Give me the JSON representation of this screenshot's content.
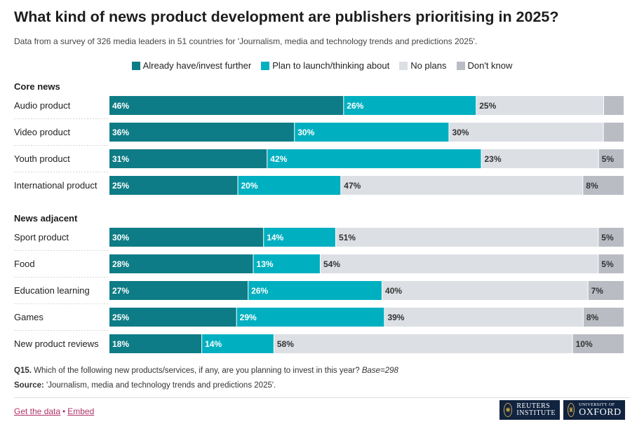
{
  "title": "What kind of news product development are publishers prioritising in 2025?",
  "subtitle": "Data from a survey of 326 media leaders in 51 countries for 'Journalism, media and technology trends and predictions 2025'.",
  "legend": [
    {
      "label": "Already have/invest further",
      "color": "#0e7c86"
    },
    {
      "label": "Plan to launch/thinking about",
      "color": "#00b0c0"
    },
    {
      "label": "No plans",
      "color": "#dcdfe4"
    },
    {
      "label": "Don't know",
      "color": "#b9bcc3"
    }
  ],
  "chart_data": {
    "type": "bar",
    "orientation": "horizontal",
    "stacked": true,
    "series_names": [
      "Already have/invest further",
      "Plan to launch/thinking about",
      "No plans",
      "Don't know"
    ],
    "groups": [
      {
        "name": "Core news",
        "rows": [
          {
            "label": "Audio product",
            "values": [
              46,
              26,
              25,
              4
            ],
            "labels": [
              "46%",
              "26%",
              "25%",
              ""
            ]
          },
          {
            "label": "Video product",
            "values": [
              36,
              30,
              30,
              4
            ],
            "labels": [
              "36%",
              "30%",
              "30%",
              ""
            ]
          },
          {
            "label": "Youth product",
            "values": [
              31,
              42,
              23,
              5
            ],
            "labels": [
              "31%",
              "42%",
              "23%",
              "5%"
            ]
          },
          {
            "label": "International product",
            "values": [
              25,
              20,
              47,
              8
            ],
            "labels": [
              "25%",
              "20%",
              "47%",
              "8%"
            ]
          }
        ]
      },
      {
        "name": "News adjacent",
        "rows": [
          {
            "label": "Sport product",
            "values": [
              30,
              14,
              51,
              5
            ],
            "labels": [
              "30%",
              "14%",
              "51%",
              "5%"
            ]
          },
          {
            "label": "Food",
            "values": [
              28,
              13,
              54,
              5
            ],
            "labels": [
              "28%",
              "13%",
              "54%",
              "5%"
            ]
          },
          {
            "label": "Education learning",
            "values": [
              27,
              26,
              40,
              7
            ],
            "labels": [
              "27%",
              "26%",
              "40%",
              "7%"
            ]
          },
          {
            "label": "Games",
            "values": [
              25,
              29,
              39,
              8
            ],
            "labels": [
              "25%",
              "29%",
              "39%",
              "8%"
            ]
          },
          {
            "label": "New product reviews",
            "values": [
              18,
              14,
              58,
              10
            ],
            "labels": [
              "18%",
              "14%",
              "58%",
              "10%"
            ]
          }
        ]
      }
    ],
    "colors": [
      "#0e7c86",
      "#00b0c0",
      "#dcdfe4",
      "#b9bcc3"
    ],
    "label_colors": [
      "#ffffff",
      "#ffffff",
      "#333333",
      "#333333"
    ],
    "xlim": [
      0,
      100
    ],
    "legend_position": "top-center",
    "grid": false
  },
  "footnote": {
    "prefix": "Q15.",
    "text": " Which of the following new products/services, if any, are you planning to invest in this year? ",
    "base": "Base=298"
  },
  "source": {
    "prefix": "Source:",
    "text": " 'Journalism, media and technology trends and predictions 2025'."
  },
  "links": {
    "get_data": "Get the data",
    "separator": "•",
    "embed": "Embed"
  },
  "logos": {
    "reuters_line1": "REUTERS",
    "reuters_line2": "INSTITUTE",
    "oxford_line1": "UNIVERSITY OF",
    "oxford_line2": "OXFORD"
  }
}
